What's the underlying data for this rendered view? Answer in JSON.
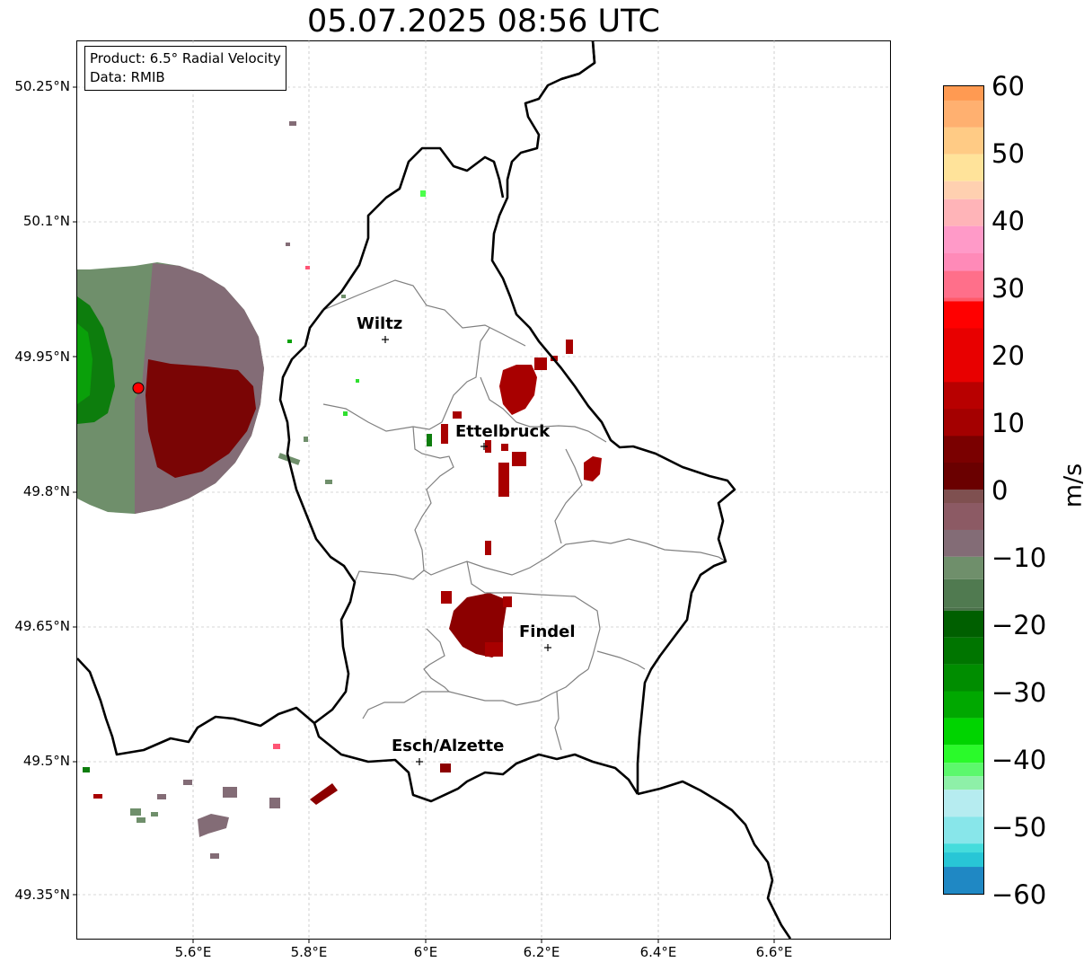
{
  "title": "05.07.2025 08:56 UTC",
  "info": {
    "product": "Product: 6.5° Radial Velocity",
    "data": "Data: RMIB"
  },
  "lat_ticks": [
    "50.25°N",
    "50.1°N",
    "49.95°N",
    "49.8°N",
    "49.65°N",
    "49.5°N",
    "49.35°N"
  ],
  "lon_ticks": [
    "5.6°E",
    "5.8°E",
    "6°E",
    "6.2°E",
    "6.4°E",
    "6.6°E"
  ],
  "cities": [
    {
      "name": "Wiltz",
      "lon": 5.933,
      "lat": 49.966
    },
    {
      "name": "Ettelbruck",
      "lon": 6.104,
      "lat": 49.848
    },
    {
      "name": "Findel",
      "lon": 6.212,
      "lat": 49.627
    },
    {
      "name": "Esch/Alzette",
      "lon": 5.987,
      "lat": 49.498
    }
  ],
  "radar_site": {
    "lon": 5.505,
    "lat": 49.914
  },
  "colorbar": {
    "unit": "m/s",
    "ticks": [
      "60",
      "50",
      "40",
      "30",
      "20",
      "10",
      "0",
      "−10",
      "−20",
      "−30",
      "−40",
      "−50",
      "−60"
    ],
    "min": -60,
    "max": 60
  },
  "colors": {
    "border": "#000000",
    "canton_lines": "#808080",
    "gridlines": "#b0b0b0",
    "radar_site": "#ff0000"
  }
}
